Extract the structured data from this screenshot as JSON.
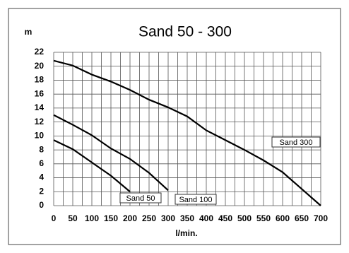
{
  "chart_data": {
    "type": "line",
    "title": "Sand 50 - 300",
    "y_label": "m",
    "x_label": "l/min.",
    "xlim": [
      0,
      700
    ],
    "xticks": [
      0,
      50,
      100,
      150,
      200,
      250,
      300,
      350,
      400,
      450,
      500,
      550,
      600,
      650,
      700
    ],
    "ylim": [
      0,
      22
    ],
    "yticks": [
      0,
      2,
      4,
      6,
      8,
      10,
      12,
      14,
      16,
      18,
      20,
      22
    ],
    "grid": true,
    "series": [
      {
        "name": "Sand 50",
        "color": "#000000",
        "x": [
          0,
          50,
          100,
          150,
          200
        ],
        "values": [
          9.4,
          8.1,
          6.2,
          4.3,
          2
        ]
      },
      {
        "name": "Sand 100",
        "color": "#000000",
        "x": [
          0,
          50,
          100,
          150,
          200,
          250,
          300
        ],
        "values": [
          13,
          11.6,
          10.1,
          8.2,
          6.7,
          4.7,
          2.2
        ]
      },
      {
        "name": "Sand 300",
        "color": "#000000",
        "x": [
          0,
          50,
          100,
          150,
          200,
          250,
          300,
          350,
          400,
          450,
          500,
          550,
          600,
          650,
          700
        ],
        "values": [
          20.8,
          20.1,
          18.8,
          17.8,
          16.6,
          15.2,
          14.1,
          12.8,
          10.8,
          9.4,
          8,
          6.5,
          4.8,
          2.4,
          0
        ]
      }
    ]
  }
}
